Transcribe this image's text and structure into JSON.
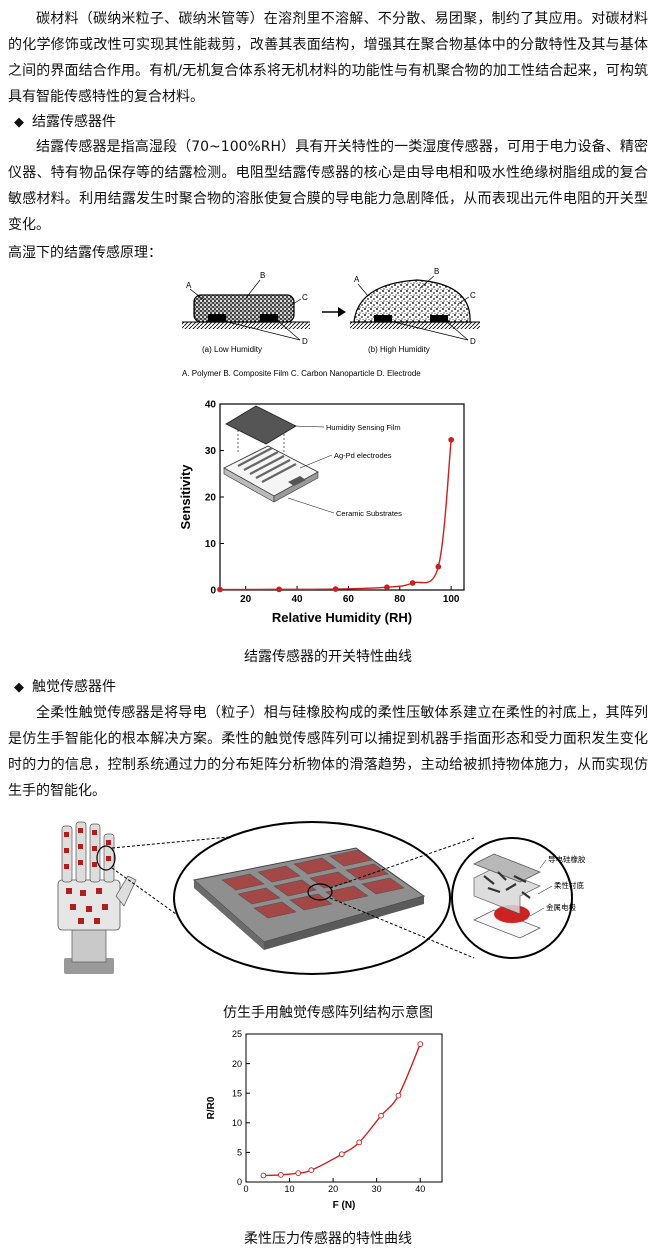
{
  "section1": {
    "paragraph": "碳材料（碳纳米粒子、碳纳米管等）在溶剂里不溶解、不分散、易团聚，制约了其应用。对碳材料的化学修饰或改性可实现其性能裁剪，改善其表面结构，增强其在聚合物基体中的分散特性及其与基体之间的界面结合作用。有机/无机复合体系将无机材料的功能性与有机聚合物的加工性结合起来，可构筑具有智能传感特性的复合材料。"
  },
  "section2": {
    "bullet": "◆",
    "heading": "结露传感器件",
    "paragraph": "结露传感器是指高湿段（70~100%RH）具有开关特性的一类湿度传感器，可用于电力设备、精密仪器、特有物品保存等的结露检测。电阻型结露传感器的核心是由导电相和吸水性绝缘树脂组成的复合敏感材料。利用结露发生时聚合物的溶胀使复合膜的导电能力急剧降低，从而表现出元件电阻的开关型变化。",
    "principle_label": "高湿下的结露传感原理：",
    "figure1": {
      "label_a": "A",
      "label_b": "B",
      "label_c": "C",
      "label_d": "D",
      "panel_a": "(a)  Low Humidity",
      "panel_b": "(b)  High Humidity",
      "legend": "A. Polymer  B. Composite Film  C. Carbon  Nanoparticle  D. Electrode"
    },
    "figure2": {
      "inset_film": "Humidity Sensing Film",
      "inset_electrodes": "Ag-Pd electrodes",
      "inset_substrate": "Ceramic Substrates",
      "caption": "结露传感器的开关特性曲线"
    }
  },
  "section3": {
    "bullet": "◆",
    "heading": "触觉传感器件",
    "paragraph": "全柔性触觉传感器是将导电（粒子）相与硅橡胶构成的柔性压敏体系建立在柔性的衬底上，其阵列是仿生手智能化的根本解决方案。柔性的触觉传感阵列可以捕捉到机器手指面形态和受力面积发生变化时的力的信息，控制系统通过力的分布矩阵分析物体的滑落趋势，主动给被抓持物体施力，从而实现仿生手的智能化。",
    "figure3": {
      "label_rubber": "导电硅橡胶",
      "label_substrate": "柔性衬底",
      "label_electrode": "金属电极",
      "caption": "仿生手用触觉传感阵列结构示意图"
    },
    "figure4": {
      "caption": "柔性压力传感器的特性曲线"
    }
  },
  "chart_data": [
    {
      "type": "line",
      "xlabel": "Relative Humidity (RH)",
      "ylabel": "Sensitivity",
      "xlim": [
        10,
        105
      ],
      "ylim": [
        0,
        40
      ],
      "xticks": [
        20,
        40,
        60,
        80,
        100
      ],
      "yticks": [
        0,
        10,
        20,
        30,
        40
      ],
      "x": [
        10,
        33,
        55,
        75,
        85,
        95,
        100
      ],
      "y": [
        0.1,
        0.15,
        0.2,
        0.6,
        1.5,
        5.0,
        32.3
      ],
      "color": "#cc1f1f"
    },
    {
      "type": "line",
      "xlabel": "F (N)",
      "ylabel": "R/R0",
      "xlim": [
        0,
        45
      ],
      "ylim": [
        0,
        25
      ],
      "xticks": [
        0,
        10,
        20,
        30,
        40
      ],
      "yticks": [
        0,
        5,
        10,
        15,
        20,
        25
      ],
      "x": [
        4,
        8,
        12,
        15,
        22,
        26,
        31,
        35,
        40
      ],
      "y": [
        1.1,
        1.2,
        1.5,
        2.0,
        4.7,
        6.7,
        11.2,
        14.6,
        23.3
      ],
      "color": "#cc1f1f"
    }
  ]
}
